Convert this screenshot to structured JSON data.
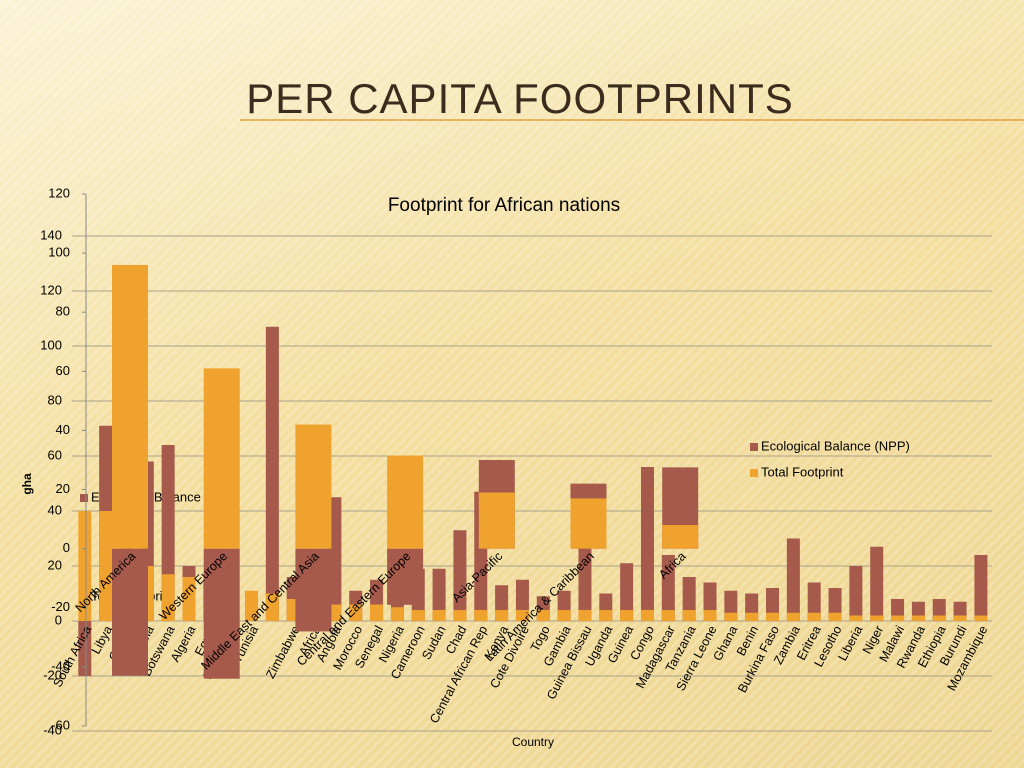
{
  "slide_title": "PER CAPITA FOOTPRINTS",
  "chart_data": [
    {
      "type": "bar",
      "title": "Footprint for African nations",
      "y_label": "gha",
      "x_label": "Country",
      "categories": [
        "South Africa",
        "Libya",
        "Gabon",
        "Namibia",
        "Botswana",
        "Algeria",
        "Egypt",
        "Mauritania",
        "Tunisia",
        null,
        "Zimbabwe",
        "Africa",
        "Angola",
        "Morocco",
        "Senegal",
        "Nigeria",
        "Cameroon",
        "Sudan",
        "Chad",
        "Central African Rep",
        "Kenya",
        "Cote Divoire",
        "Togo",
        "Gambia",
        "Guinea Bissau",
        "Uganda",
        "Guinea",
        "Congo",
        "Madagascar",
        "Tanzania",
        "Sierra Leone",
        "Ghana",
        "Benin",
        "Burkina Faso",
        "Zambia",
        "Eritrea",
        "Lesotho",
        "Liberia",
        "Niger",
        "Malawi",
        "Rwanda",
        "Ethiopia",
        "Burundi",
        "Mozambique"
      ],
      "series": [
        {
          "name": "Ecological Balance (NPP)",
          "color": "#a65a4b",
          "values": [
            -20,
            71,
            60,
            58,
            64,
            20,
            14,
            12,
            10,
            107,
            16,
            10,
            45,
            11,
            15,
            15,
            19,
            19,
            33,
            47,
            13,
            15,
            9,
            11,
            48,
            10,
            21,
            56,
            24,
            16,
            14,
            11,
            10,
            12,
            30,
            14,
            12,
            20,
            27,
            8,
            7,
            8,
            7,
            24
          ]
        },
        {
          "name": "Total Footprint",
          "color": "#f0a22e",
          "values": [
            40,
            40,
            20,
            20,
            17,
            16,
            12,
            10,
            11,
            10,
            8,
            6,
            6,
            6,
            6,
            5,
            4,
            4,
            4,
            4,
            4,
            4,
            4,
            4,
            4,
            4,
            4,
            4,
            4,
            4,
            4,
            3,
            3,
            3,
            3,
            3,
            3,
            2,
            2,
            2,
            2,
            2,
            2,
            2
          ]
        }
      ],
      "ylim": [
        -40,
        140
      ],
      "yticks": [
        -40,
        -20,
        0,
        20,
        40,
        60,
        80,
        100,
        120,
        140
      ],
      "grid": true,
      "legend": "right"
    },
    {
      "type": "bar",
      "categories": [
        "North America",
        "Western Europe",
        "Middle East and Central Asia",
        "Central and Eastern Europe",
        "Asia-Pacific",
        "Latin America & Caribbean",
        "Africa"
      ],
      "series": [
        {
          "name": "Ecological Balance (NPP)",
          "color": "#a65a4b",
          "values": [
            -43,
            -44,
            -28,
            -19,
            30,
            22,
            27.5
          ]
        },
        {
          "name": "Total Footprint",
          "color": "#f0a22e",
          "values": [
            96,
            61,
            42,
            31.5,
            19,
            17,
            8
          ]
        }
      ],
      "ylim": [
        -60,
        120
      ],
      "yticks": [
        -60,
        -40,
        -20,
        0,
        20,
        40,
        60,
        80,
        100,
        120
      ],
      "grid": false,
      "legend": "left"
    }
  ]
}
